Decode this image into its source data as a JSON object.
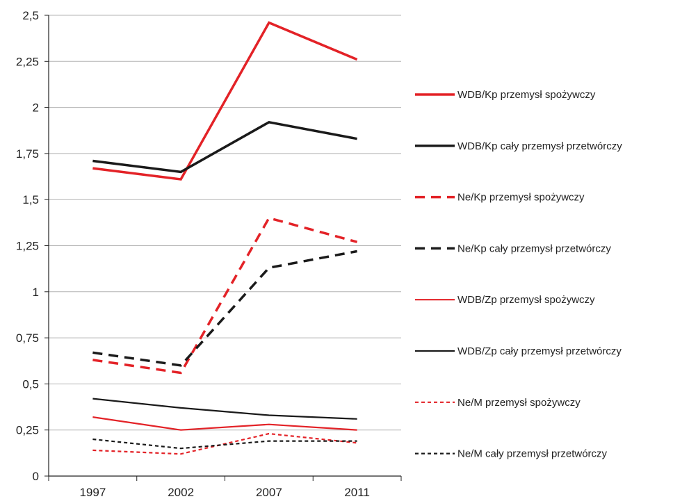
{
  "chart_data": {
    "type": "line",
    "categories": [
      "1997",
      "2002",
      "2007",
      "2011"
    ],
    "y_ticks": [
      "0",
      "0,25",
      "0,5",
      "0,75",
      "1",
      "1,25",
      "1,5",
      "1,75",
      "2",
      "2,25",
      "2,5"
    ],
    "ylim": [
      0,
      2.5
    ],
    "grid": true,
    "legend_position": "right",
    "series": [
      {
        "name": "WDB/Kp  przemysł spożywczy",
        "values": [
          1.67,
          1.61,
          2.46,
          2.26
        ],
        "color": "#e32227",
        "style": "solid-thick"
      },
      {
        "name": "WDB/Kp  cały przemysł przetwórczy",
        "values": [
          1.71,
          1.65,
          1.92,
          1.83
        ],
        "color": "#1a1a1a",
        "style": "solid-thick"
      },
      {
        "name": "Ne/Kp przemysł spożywczy",
        "values": [
          0.63,
          0.56,
          1.4,
          1.27
        ],
        "color": "#e32227",
        "style": "dashed-thick"
      },
      {
        "name": "Ne/Kp cały przemysł przetwórczy",
        "values": [
          0.67,
          0.6,
          1.13,
          1.22
        ],
        "color": "#1a1a1a",
        "style": "dashed-thick"
      },
      {
        "name": "WDB/Zp przemysł spożywczy",
        "values": [
          0.32,
          0.25,
          0.28,
          0.25
        ],
        "color": "#e32227",
        "style": "solid-thin"
      },
      {
        "name": "WDB/Zp cały przemysł przetwórczy",
        "values": [
          0.42,
          0.37,
          0.33,
          0.31
        ],
        "color": "#1a1a1a",
        "style": "solid-thin"
      },
      {
        "name": "Ne/M przemysł spożywczy",
        "values": [
          0.14,
          0.12,
          0.23,
          0.18
        ],
        "color": "#e32227",
        "style": "dotted-thin"
      },
      {
        "name": "Ne/M cały przemysł przetwórczy",
        "values": [
          0.2,
          0.15,
          0.19,
          0.19
        ],
        "color": "#1a1a1a",
        "style": "dotted-thin"
      }
    ]
  }
}
